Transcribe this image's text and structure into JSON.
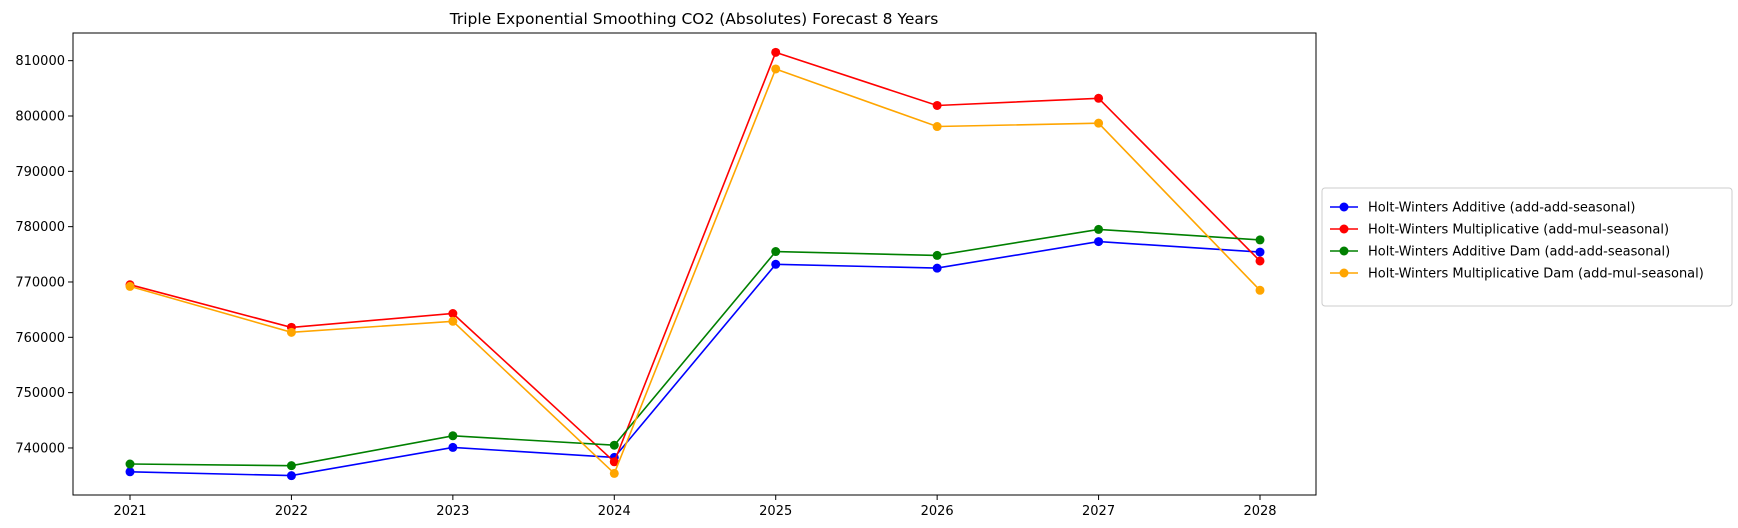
{
  "chart_data": {
    "type": "line",
    "title": "Triple Exponential Smoothing CO2 (Absolutes) Forecast 8 Years",
    "xlabel": "",
    "ylabel": "",
    "x": [
      "2021",
      "2022",
      "2023",
      "2024",
      "2025",
      "2026",
      "2027",
      "2028"
    ],
    "yticks": [
      "740000",
      "750000",
      "760000",
      "770000",
      "780000",
      "790000",
      "800000",
      "810000"
    ],
    "ylim": [
      731500,
      815000
    ],
    "grid": false,
    "legend_position": "center-right, outside plot",
    "marker": "circle",
    "series": [
      {
        "name": "Holt-Winters Additive (add-add-seasonal)",
        "color": "#0000ff",
        "values": [
          735700,
          735000,
          740100,
          738300,
          773200,
          772500,
          777300,
          775400
        ]
      },
      {
        "name": "Holt-Winters Multiplicative (add-mul-seasonal)",
        "color": "#ff0000",
        "values": [
          769500,
          761800,
          764300,
          737500,
          811500,
          801900,
          803200,
          773800
        ]
      },
      {
        "name": "Holt-Winters Additive Dam (add-add-seasonal)",
        "color": "#008000",
        "values": [
          737100,
          736800,
          742200,
          740500,
          775500,
          774800,
          779500,
          777600
        ]
      },
      {
        "name": "Holt-Winters Multiplicative Dam (add-mul-seasonal)",
        "color": "#ffa500",
        "values": [
          769200,
          760900,
          762900,
          735400,
          808500,
          798100,
          798700,
          768500
        ]
      }
    ]
  }
}
